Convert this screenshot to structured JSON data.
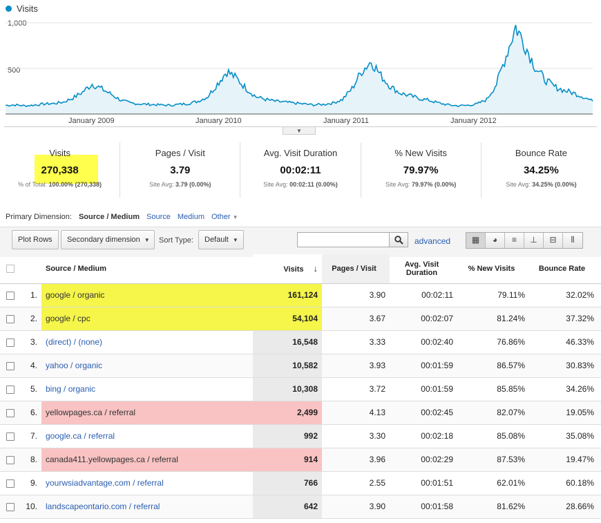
{
  "chart": {
    "legend": "Visits",
    "series_color": "#058dc7",
    "y_ticks": [
      "1,000",
      "500"
    ],
    "x_ticks": [
      "January 2009",
      "January 2010",
      "January 2011",
      "January 2012"
    ],
    "collapse_glyph": "▼"
  },
  "chart_data": {
    "type": "area",
    "series": [
      {
        "name": "Visits",
        "values": [
          95,
          100,
          90,
          98,
          110,
          115,
          130,
          175,
          240,
          330,
          275,
          215,
          150,
          120,
          110,
          105,
          100,
          95,
          105,
          115,
          140,
          190,
          330,
          470,
          390,
          280,
          190,
          160,
          140,
          130,
          120,
          110,
          100,
          105,
          120,
          160,
          280,
          470,
          580,
          420,
          300,
          230,
          200,
          170,
          150,
          120,
          100,
          90,
          95,
          110,
          160,
          330,
          640,
          960,
          750,
          520,
          380,
          300,
          260,
          230,
          190,
          140
        ]
      }
    ],
    "x_range": [
      "2008-06",
      "2012-10"
    ],
    "ylim": [
      0,
      1000
    ],
    "grid": true
  },
  "scorecards": [
    {
      "label": "Visits",
      "value": "270,338",
      "sub_prefix": "% of Total:",
      "sub_value": "100.00% (270,338)"
    },
    {
      "label": "Pages / Visit",
      "value": "3.79",
      "sub_prefix": "Site Avg:",
      "sub_value": "3.79 (0.00%)"
    },
    {
      "label": "Avg. Visit Duration",
      "value": "00:02:11",
      "sub_prefix": "Site Avg:",
      "sub_value": "00:02:11 (0.00%)"
    },
    {
      "label": "% New Visits",
      "value": "79.97%",
      "sub_prefix": "Site Avg:",
      "sub_value": "79.97% (0.00%)"
    },
    {
      "label": "Bounce Rate",
      "value": "34.25%",
      "sub_prefix": "Site Avg:",
      "sub_value": "34.25% (0.00%)"
    }
  ],
  "dimension": {
    "label": "Primary Dimension:",
    "active": "Source / Medium",
    "options": [
      "Source",
      "Medium",
      "Other"
    ]
  },
  "toolbar": {
    "plot_rows": "Plot Rows",
    "secondary": "Secondary dimension",
    "sort_label": "Sort Type:",
    "sort_value": "Default",
    "search_placeholder": "",
    "advanced": "advanced"
  },
  "table": {
    "headers": {
      "source": "Source / Medium",
      "visits": "Visits",
      "pages": "Pages / Visit",
      "duration": "Avg. Visit Duration",
      "new": "% New Visits",
      "bounce": "Bounce Rate"
    },
    "rows": [
      {
        "n": "1.",
        "src": "google / organic",
        "visits": "161,124",
        "pv": "3.90",
        "dur": "00:02:11",
        "nv": "79.11%",
        "br": "32.02%",
        "hl": "yellow"
      },
      {
        "n": "2.",
        "src": "google / cpc",
        "visits": "54,104",
        "pv": "3.67",
        "dur": "00:02:07",
        "nv": "81.24%",
        "br": "37.32%",
        "hl": "yellow"
      },
      {
        "n": "3.",
        "src": "(direct) / (none)",
        "visits": "16,548",
        "pv": "3.33",
        "dur": "00:02:40",
        "nv": "76.86%",
        "br": "46.33%",
        "hl": ""
      },
      {
        "n": "4.",
        "src": "yahoo / organic",
        "visits": "10,582",
        "pv": "3.93",
        "dur": "00:01:59",
        "nv": "86.57%",
        "br": "30.83%",
        "hl": ""
      },
      {
        "n": "5.",
        "src": "bing / organic",
        "visits": "10,308",
        "pv": "3.72",
        "dur": "00:01:59",
        "nv": "85.85%",
        "br": "34.26%",
        "hl": ""
      },
      {
        "n": "6.",
        "src": "yellowpages.ca / referral",
        "visits": "2,499",
        "pv": "4.13",
        "dur": "00:02:45",
        "nv": "82.07%",
        "br": "19.05%",
        "hl": "pink"
      },
      {
        "n": "7.",
        "src": "google.ca / referral",
        "visits": "992",
        "pv": "3.30",
        "dur": "00:02:18",
        "nv": "85.08%",
        "br": "35.08%",
        "hl": ""
      },
      {
        "n": "8.",
        "src": "canada411.yellowpages.ca / referral",
        "visits": "914",
        "pv": "3.96",
        "dur": "00:02:29",
        "nv": "87.53%",
        "br": "19.47%",
        "hl": "pink"
      },
      {
        "n": "9.",
        "src": "yourwsiadvantage.com / referral",
        "visits": "766",
        "pv": "2.55",
        "dur": "00:01:51",
        "nv": "62.01%",
        "br": "60.18%",
        "hl": ""
      },
      {
        "n": "10.",
        "src": "landscapeontario.com / referral",
        "visits": "642",
        "pv": "3.90",
        "dur": "00:01:58",
        "nv": "81.62%",
        "br": "28.66%",
        "hl": ""
      }
    ]
  }
}
